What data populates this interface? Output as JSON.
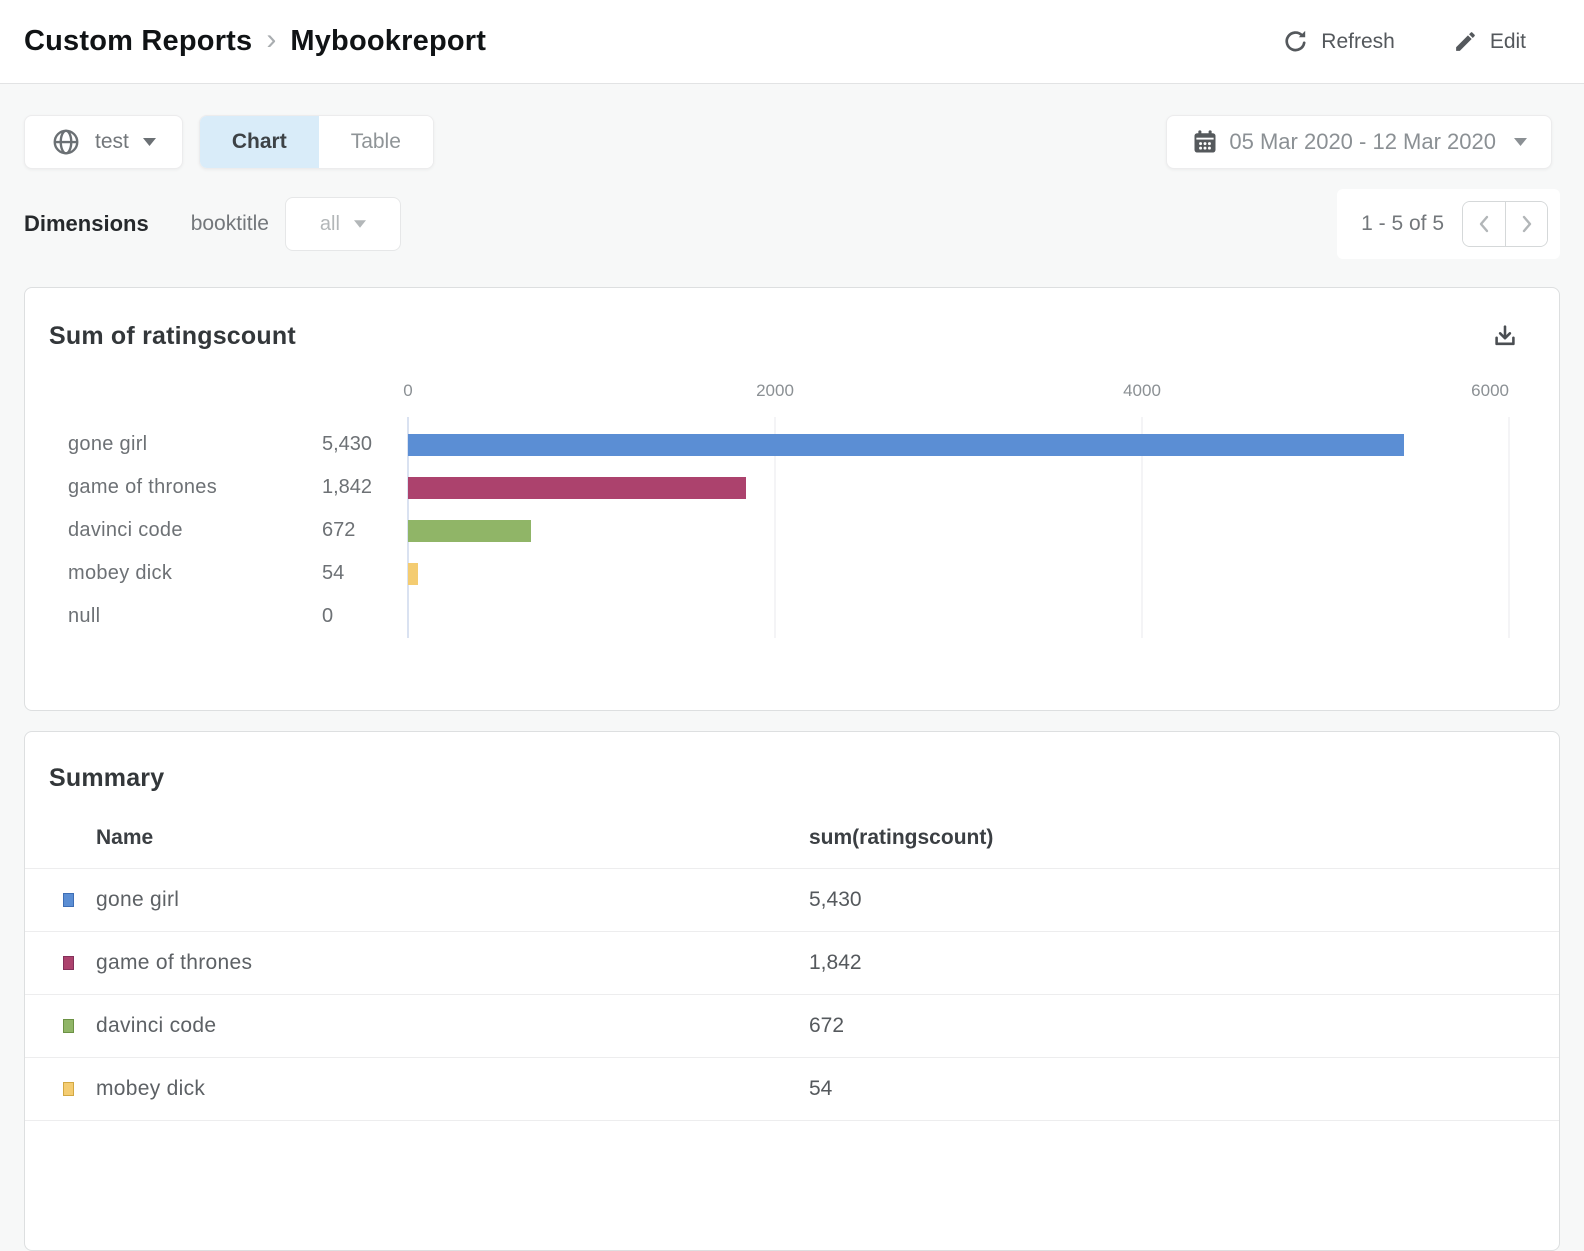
{
  "header": {
    "breadcrumb": {
      "section": "Custom Reports",
      "separator": "›",
      "page": "Mybookreport"
    },
    "refresh_label": "Refresh",
    "edit_label": "Edit"
  },
  "toolbar": {
    "scope_selector_label": "test",
    "view_toggle": {
      "chart_label": "Chart",
      "table_label": "Table",
      "selected": "Chart"
    },
    "date_range_label": "05 Mar 2020 - 12 Mar 2020"
  },
  "dimensions_bar": {
    "label": "Dimensions",
    "dimension": "booktitle",
    "filter_selected": "all",
    "pagination_label": "1 - 5 of 5"
  },
  "chart_card": {
    "title": "Sum of ratingscount"
  },
  "chart_data": {
    "type": "bar",
    "orientation": "horizontal",
    "title": "Sum of ratingscount",
    "categories": [
      "gone girl",
      "game of thrones",
      "davinci code",
      "mobey dick",
      "null"
    ],
    "values": [
      5430,
      1842,
      672,
      54,
      0
    ],
    "value_labels": [
      "5,430",
      "1,842",
      "672",
      "54",
      "0"
    ],
    "bar_colors": [
      "#5b8ed4",
      "#ac426d",
      "#90b567",
      "#f4cc71",
      null
    ],
    "xlim": [
      0,
      6000
    ],
    "x_ticks": [
      0,
      2000,
      4000,
      6000
    ],
    "x_tick_labels": [
      "0",
      "2000",
      "4000",
      "6000"
    ],
    "grid": true,
    "legend": "none",
    "xlabel": "",
    "ylabel": ""
  },
  "summary_card": {
    "title": "Summary",
    "columns": [
      "Name",
      "sum(ratingscount)"
    ],
    "rows": [
      {
        "name": "gone girl",
        "value": "5,430",
        "color": "#5b8ed4",
        "border": "#3e6eb5"
      },
      {
        "name": "game of thrones",
        "value": "1,842",
        "color": "#ac426d",
        "border": "#84305a"
      },
      {
        "name": "davinci code",
        "value": "672",
        "color": "#90b567",
        "border": "#6c9244"
      },
      {
        "name": "mobey dick",
        "value": "54",
        "color": "#f4cc71",
        "border": "#d2a843"
      }
    ]
  },
  "colors": {
    "page_bg": "#f7f8f8",
    "selected_tab_bg": "#d9ecf9",
    "bar_blue": "#5b8ed4",
    "bar_crimson": "#ac426d",
    "bar_green": "#90b567",
    "bar_yellow": "#f4cc71"
  }
}
